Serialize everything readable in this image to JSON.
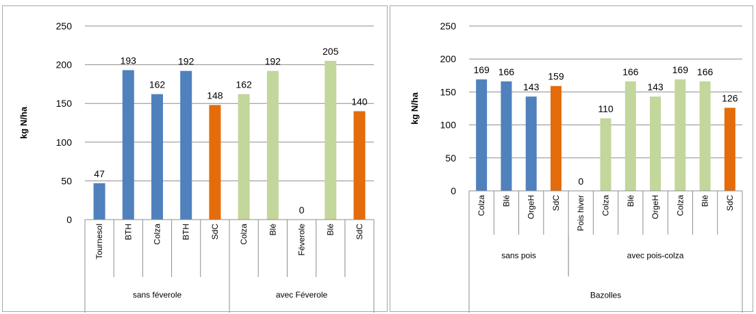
{
  "colors": {
    "blue": "#4f81bd",
    "orange": "#e46c0a",
    "light_green": "#c3d69b",
    "grid": "#8c8c8c",
    "axis": "#8c8c8c"
  },
  "chart_data": [
    {
      "type": "bar",
      "ylabel": "kg N/ha",
      "ylim": [
        0,
        250
      ],
      "yticks": [
        0,
        50,
        100,
        150,
        200,
        250
      ],
      "grid": true,
      "categories": [
        "Tournesol",
        "BTH",
        "Colza",
        "BTH",
        "SdC",
        "Colza",
        "Blé",
        "Féverole",
        "Blé",
        "SdC"
      ],
      "values": [
        47,
        193,
        162,
        192,
        148,
        162,
        192,
        0,
        205,
        140
      ],
      "bar_colors": [
        "blue",
        "blue",
        "blue",
        "blue",
        "orange",
        "light_green",
        "light_green",
        "light_green",
        "light_green",
        "orange"
      ],
      "groups": [
        {
          "label": "sans féverole",
          "start": 0,
          "end": 4
        },
        {
          "label": "avec Féverole",
          "start": 5,
          "end": 9
        }
      ],
      "outer_group": ""
    },
    {
      "type": "bar",
      "ylabel": "kg N/ha",
      "ylim": [
        0,
        250
      ],
      "yticks": [
        0,
        50,
        100,
        150,
        200,
        250
      ],
      "grid": true,
      "categories": [
        "Colza",
        "Blé",
        "OrgeH",
        "SdC",
        "Pois hiver",
        "Colza",
        "Blé",
        "OrgeH",
        "Colza",
        "Blé",
        "SdC"
      ],
      "values": [
        169,
        166,
        143,
        159,
        0,
        110,
        166,
        143,
        169,
        166,
        126
      ],
      "bar_colors": [
        "blue",
        "blue",
        "blue",
        "orange",
        "light_green",
        "light_green",
        "light_green",
        "light_green",
        "light_green",
        "light_green",
        "orange"
      ],
      "groups": [
        {
          "label": "sans pois",
          "start": 0,
          "end": 3
        },
        {
          "label": "avec pois-colza",
          "start": 4,
          "end": 10
        }
      ],
      "outer_group": "Bazolles"
    }
  ]
}
